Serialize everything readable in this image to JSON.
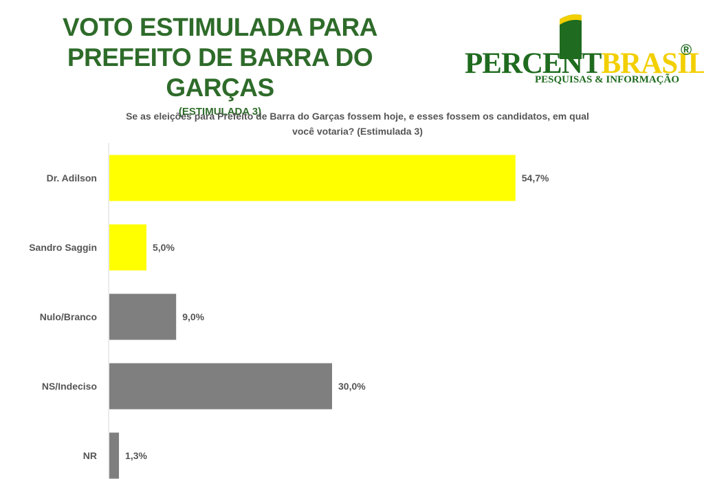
{
  "header": {
    "title_line1": "VOTO ESTIMULADA PARA",
    "title_line2": "PREFEITO DE BARRA DO GARÇAS",
    "subtitle": "(ESTIMULADA 3)"
  },
  "logo": {
    "word_percent": "PERCENT",
    "word_brasil": "BRASIL",
    "registered": "®",
    "tagline": "PESQUISAS & INFORMAÇÃO"
  },
  "question": {
    "line1": "Se as eleições para Prefeito de Barra do Garças fossem hoje, e esses fossem os  candidatos, em qual",
    "line2": "você votaria? (Estimulada 3)"
  },
  "colors": {
    "title_green": "#2e6b2a",
    "candidate_yellow": "#ffff00",
    "other_gray": "#7f7f7f",
    "axis_gray": "#d9d9d9"
  },
  "chart_data": {
    "type": "bar",
    "orientation": "horizontal",
    "categories": [
      "Dr. Adilson",
      "Sandro Saggin",
      "Nulo/Branco",
      "NS/Indeciso",
      "NR"
    ],
    "values": [
      54.7,
      5.0,
      9.0,
      30.0,
      1.3
    ],
    "value_labels": [
      "54,7%",
      "5,0%",
      "9,0%",
      "30,0%",
      "1,3%"
    ],
    "bar_colors": [
      "#ffff00",
      "#ffff00",
      "#7f7f7f",
      "#7f7f7f",
      "#7f7f7f"
    ],
    "title": "",
    "xlabel": "",
    "ylabel": "",
    "xlim": [
      0,
      60
    ],
    "grid": false,
    "legend": "none"
  }
}
